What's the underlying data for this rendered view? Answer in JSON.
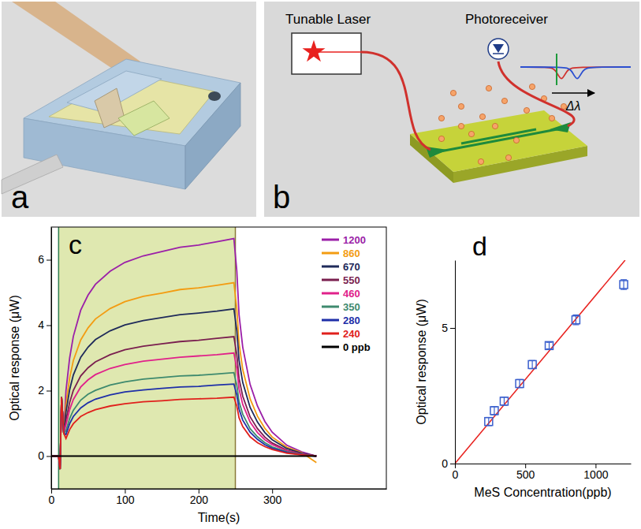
{
  "figures": [
    {
      "panel": "a"
    },
    {
      "panel": "b",
      "labels": {
        "laser": "Tunable Laser",
        "receiver": "Photoreceiver",
        "shift": "Δλ"
      }
    }
  ],
  "chart_data": [
    {
      "panel": "c",
      "type": "line",
      "x_label": "Time(s)",
      "y_label": "Optical response (μW)",
      "x": [
        0,
        10,
        12,
        14,
        17,
        20,
        25,
        30,
        40,
        50,
        60,
        80,
        100,
        125,
        150,
        175,
        200,
        225,
        248,
        252,
        255,
        260,
        270,
        280,
        290,
        300,
        320,
        340,
        360
      ],
      "xlim": [
        0,
        455
      ],
      "xticks": [
        0,
        100,
        200,
        300
      ],
      "ylim": [
        -1,
        7
      ],
      "yticks": [
        0,
        2,
        4,
        6
      ],
      "legend": "upper right",
      "shaded_x": [
        10,
        250
      ],
      "series": [
        {
          "name": "1200",
          "color": "#9b1fa8",
          "values": [
            0,
            0,
            -0.4,
            1.8,
            0.7,
            2.0,
            3.0,
            3.66,
            4.46,
            4.92,
            5.25,
            5.65,
            5.92,
            6.12,
            6.25,
            6.38,
            6.45,
            6.55,
            6.65,
            5.65,
            4.32,
            3.33,
            2.19,
            1.53,
            1.06,
            0.73,
            0.33,
            0.13,
            0.0
          ]
        },
        {
          "name": "860",
          "color": "#f39c12",
          "values": [
            0,
            0,
            -0.4,
            1.8,
            0.7,
            1.59,
            2.39,
            2.92,
            3.55,
            3.92,
            4.19,
            4.51,
            4.72,
            4.88,
            4.98,
            5.09,
            5.14,
            5.22,
            5.3,
            4.5,
            3.45,
            2.65,
            1.75,
            1.22,
            0.85,
            0.58,
            0.27,
            0.11,
            -0.2
          ]
        },
        {
          "name": "670",
          "color": "#1f2a5a",
          "values": [
            0,
            0,
            -0.4,
            1.8,
            0.7,
            1.35,
            2.03,
            2.48,
            3.02,
            3.33,
            3.56,
            3.83,
            4.01,
            4.14,
            4.23,
            4.32,
            4.37,
            4.43,
            4.5,
            3.83,
            2.93,
            2.25,
            1.49,
            1.04,
            0.72,
            0.5,
            0.23,
            0.09,
            0.0
          ]
        },
        {
          "name": "550",
          "color": "#7a1f4f",
          "values": [
            0,
            0,
            -0.4,
            1.8,
            0.7,
            1.1,
            1.64,
            2.01,
            2.45,
            2.7,
            2.88,
            3.1,
            3.25,
            3.36,
            3.43,
            3.5,
            3.54,
            3.6,
            3.65,
            3.1,
            2.37,
            1.83,
            1.2,
            0.84,
            0.58,
            0.4,
            0.18,
            0.07,
            0.0
          ]
        },
        {
          "name": "460",
          "color": "#e0218a",
          "values": [
            0,
            0,
            -0.4,
            1.8,
            0.7,
            0.95,
            1.42,
            1.73,
            2.11,
            2.33,
            2.49,
            2.68,
            2.8,
            2.9,
            2.96,
            3.02,
            3.06,
            3.1,
            3.15,
            2.68,
            2.05,
            1.58,
            1.04,
            0.72,
            0.5,
            0.35,
            0.16,
            0.06,
            0.0
          ]
        },
        {
          "name": "350",
          "color": "#3e8a6e",
          "values": [
            0,
            0,
            -0.4,
            1.8,
            0.7,
            0.77,
            1.15,
            1.4,
            1.71,
            1.89,
            2.01,
            2.17,
            2.27,
            2.35,
            2.4,
            2.45,
            2.47,
            2.51,
            2.55,
            2.17,
            1.66,
            1.28,
            0.84,
            0.59,
            0.41,
            0.28,
            0.13,
            0.05,
            0.0
          ]
        },
        {
          "name": "280",
          "color": "#1e2fa8",
          "values": [
            0,
            0,
            -0.4,
            1.8,
            0.7,
            0.66,
            0.99,
            1.21,
            1.47,
            1.63,
            1.74,
            1.87,
            1.96,
            2.02,
            2.07,
            2.11,
            2.13,
            2.17,
            2.2,
            1.87,
            1.43,
            1.1,
            0.73,
            0.51,
            0.35,
            0.24,
            0.11,
            0.04,
            0.0
          ]
        },
        {
          "name": "240",
          "color": "#e0201c",
          "values": [
            0,
            0,
            -0.4,
            1.8,
            0.7,
            0.54,
            0.81,
            0.99,
            1.21,
            1.33,
            1.42,
            1.53,
            1.6,
            1.66,
            1.69,
            1.73,
            1.75,
            1.77,
            1.8,
            1.53,
            1.17,
            0.9,
            0.59,
            0.41,
            0.29,
            0.2,
            0.09,
            0.04,
            0.0
          ]
        },
        {
          "name": "0 ppb",
          "color": "#000000",
          "values": [
            0,
            0,
            0,
            0,
            0,
            0,
            0,
            0,
            0,
            0,
            0,
            0,
            0,
            0,
            0,
            0,
            0,
            0,
            0,
            0,
            0,
            0,
            0,
            0,
            0,
            0,
            0,
            0,
            0
          ]
        }
      ]
    },
    {
      "panel": "d",
      "type": "scatter",
      "x_label": "MeS Concentration(ppb)",
      "y_label": "Optical response (μW)",
      "xlim": [
        0,
        1250
      ],
      "xticks": [
        0,
        500,
        1000
      ],
      "ylim": [
        0,
        7.5
      ],
      "yticks": [
        0,
        5
      ],
      "series": [
        {
          "type": "scatter",
          "marker": "square",
          "color": "#3a5fcd",
          "x": [
            240,
            280,
            350,
            460,
            550,
            670,
            860,
            1200
          ],
          "values": [
            1.55,
            1.95,
            2.3,
            2.95,
            3.65,
            4.35,
            5.3,
            6.6
          ],
          "error": [
            0.15,
            0.15,
            0.15,
            0.15,
            0.15,
            0.12,
            0.18,
            0.18
          ]
        },
        {
          "type": "line",
          "line_style": "solid",
          "color": "#e8211e",
          "x": [
            0,
            1210
          ],
          "values": [
            0,
            7.5
          ]
        }
      ]
    }
  ]
}
